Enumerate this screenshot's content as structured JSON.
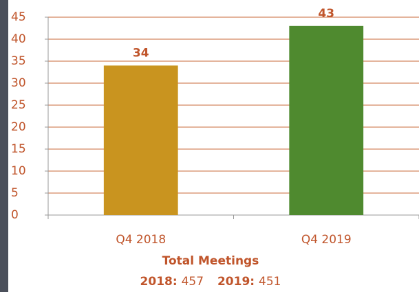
{
  "chart_data": {
    "type": "bar",
    "categories": [
      "Q4 2018",
      "Q4 2019"
    ],
    "values": [
      34,
      43
    ],
    "colors": [
      "#c9941f",
      "#4f8a2f"
    ],
    "ylim": [
      0,
      45
    ],
    "yticks": [
      0,
      5,
      10,
      15,
      20,
      25,
      30,
      35,
      40,
      45
    ],
    "grid": true,
    "annotation": "Total Meetings",
    "totals": [
      {
        "label": "2018:",
        "value": 457
      },
      {
        "label": "2019:",
        "value": 451
      }
    ]
  }
}
